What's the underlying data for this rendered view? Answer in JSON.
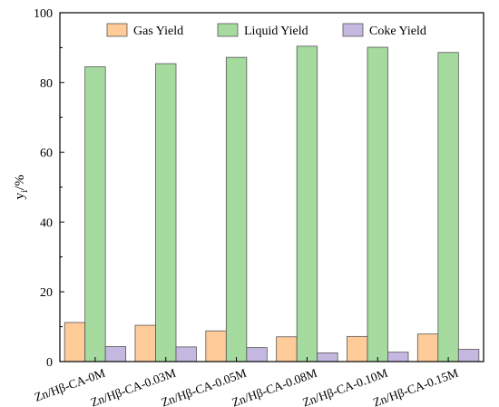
{
  "chart_data": {
    "type": "bar",
    "title": "",
    "xlabel": "",
    "ylabel": {
      "main": "y",
      "sub": "i",
      "unit": "/%"
    },
    "ylim": [
      0,
      100
    ],
    "yticks": [
      0,
      20,
      40,
      60,
      80,
      100
    ],
    "legend_position": "top-right",
    "grid": false,
    "categories": [
      "Zn/Hβ-CA-0M",
      "Zn/Hβ-CA-0.03M",
      "Zn/Hβ-CA-0.05M",
      "Zn/Hβ-CA-0.08M",
      "Zn/Hβ-CA-0.10M",
      "Zn/Hβ-CA-0.15M"
    ],
    "series": [
      {
        "name": "Gas Yield",
        "color": "#FFCC99",
        "values": [
          11.2,
          10.4,
          8.8,
          7.1,
          7.2,
          7.9
        ]
      },
      {
        "name": "Liquid Yield",
        "color": "#A6DBA0",
        "values": [
          84.5,
          85.4,
          87.2,
          90.4,
          90.1,
          88.6
        ]
      },
      {
        "name": "Coke Yield",
        "color": "#C5B8E0",
        "values": [
          4.3,
          4.2,
          4.0,
          2.5,
          2.7,
          3.5
        ]
      }
    ]
  }
}
